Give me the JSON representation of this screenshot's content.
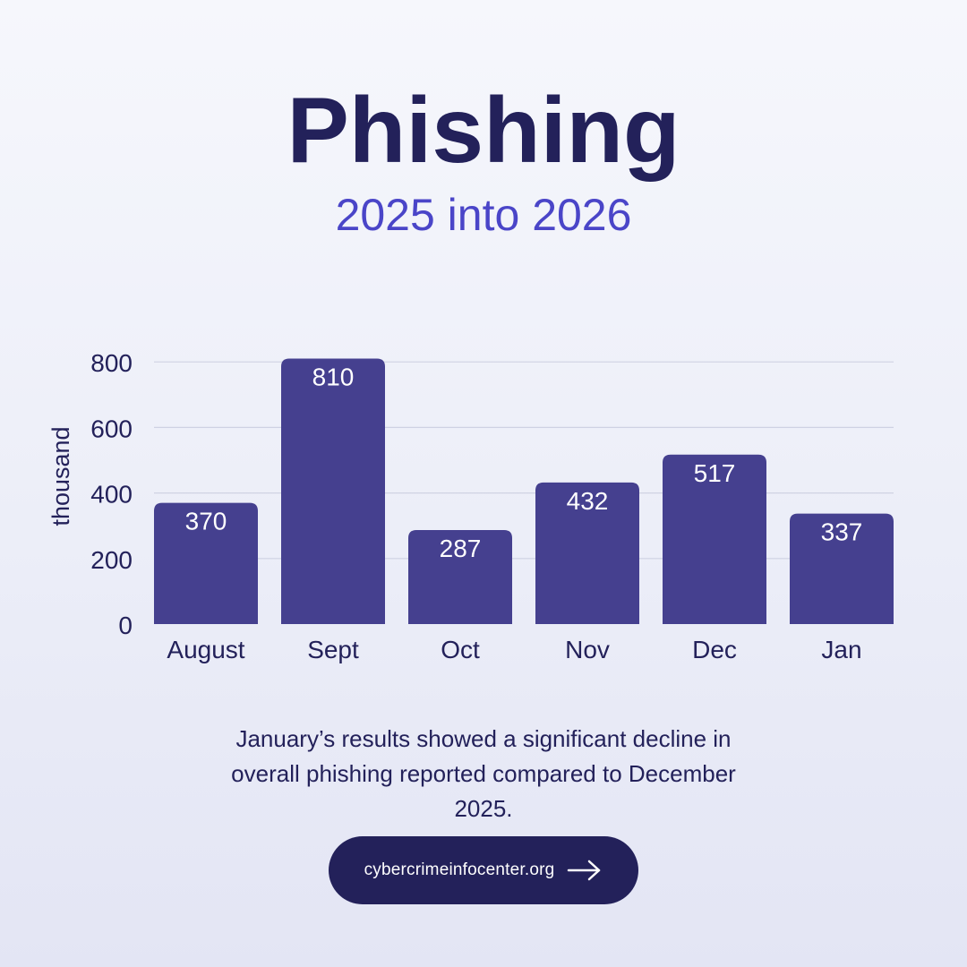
{
  "header": {
    "title": "Phishing",
    "subtitle": "2025 into 2026"
  },
  "chart_data": {
    "type": "bar",
    "categories": [
      "August",
      "Sept",
      "Oct",
      "Nov",
      "Dec",
      "Jan"
    ],
    "values": [
      370,
      810,
      287,
      432,
      517,
      337
    ],
    "ylabel": "thousand",
    "yticks": [
      0,
      200,
      400,
      600,
      800
    ],
    "ylim": [
      0,
      810
    ],
    "grid": true,
    "bar_color": "#45408f",
    "grid_color": "#cfd2e3"
  },
  "caption": {
    "text": "January’s results showed a significant decline in overall phishing reported compared to December 2025."
  },
  "cta": {
    "label": "cybercrimeinfocenter.org",
    "icon": "arrow-right-icon"
  },
  "colors": {
    "title": "#23215a",
    "subtitle": "#4a45c8",
    "cta_background": "#23215a"
  }
}
